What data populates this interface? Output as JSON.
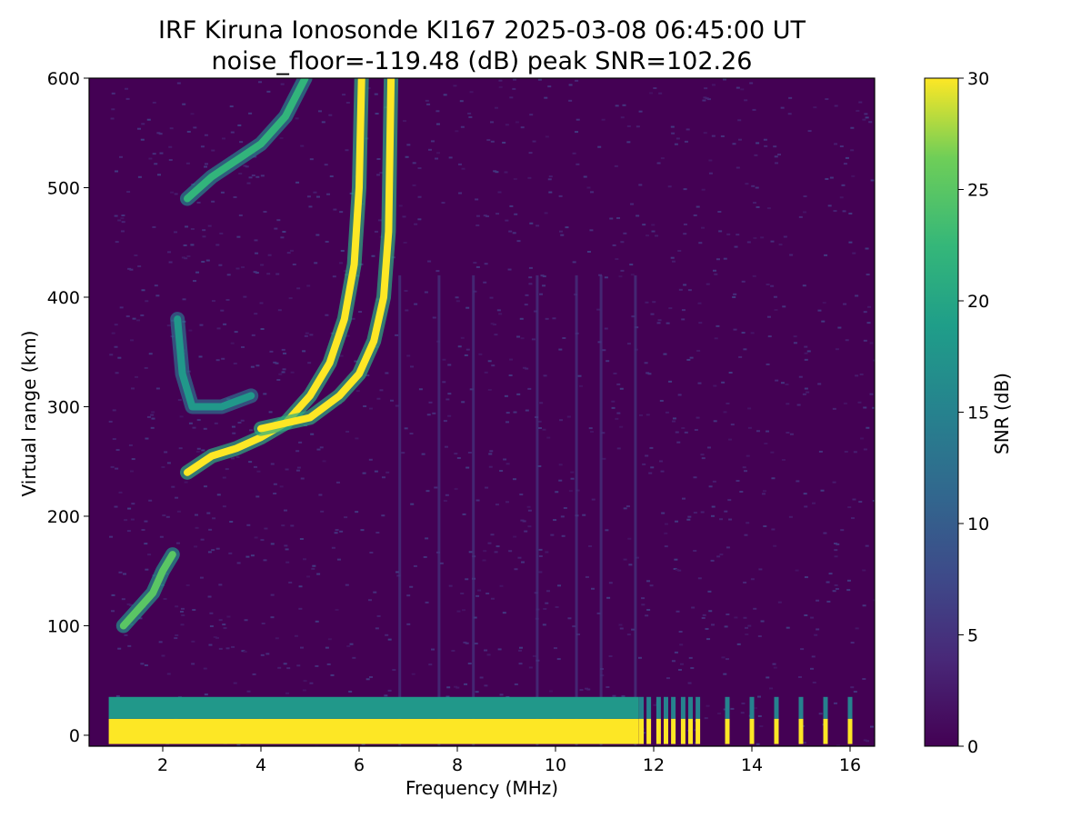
{
  "chart_data": {
    "type": "heatmap",
    "title": "IRF Kiruna Ionosonde KI167 2025-03-08 06:45:00  UT",
    "subtitle": "noise_floor=-119.48 (dB) peak SNR=102.26",
    "xlabel": "Frequency (MHz)",
    "ylabel": "Virtual range (km)",
    "colorbar_label": "SNR (dB)",
    "xlim": [
      0.5,
      16.5
    ],
    "ylim": [
      -10,
      600
    ],
    "clim": [
      0,
      30
    ],
    "colormap": "viridis",
    "data_start_mhz": 0.9,
    "x_ticks": [
      2,
      4,
      6,
      8,
      10,
      12,
      14,
      16
    ],
    "y_ticks": [
      0,
      100,
      200,
      300,
      400,
      500,
      600
    ],
    "colorbar_ticks": [
      0,
      5,
      10,
      15,
      20,
      25,
      30
    ],
    "traces": [
      {
        "name": "ground echo",
        "snr": 30,
        "points": [
          [
            0.9,
            0
          ],
          [
            11.7,
            0
          ]
        ],
        "height_range": [
          -8,
          15
        ]
      },
      {
        "name": "low-range band",
        "snr": 18,
        "points": [
          [
            0.9,
            25
          ],
          [
            11.7,
            25
          ]
        ],
        "height_range": [
          15,
          35
        ]
      },
      {
        "name": "E layer",
        "snr": 25,
        "points": [
          [
            1.2,
            100
          ],
          [
            1.5,
            115
          ],
          [
            1.8,
            130
          ],
          [
            2.0,
            150
          ],
          [
            2.2,
            165
          ]
        ]
      },
      {
        "name": "F2 o-mode",
        "snr": 30,
        "points": [
          [
            2.5,
            240
          ],
          [
            3.0,
            255
          ],
          [
            3.5,
            262
          ],
          [
            4.0,
            272
          ],
          [
            4.5,
            285
          ],
          [
            5.0,
            310
          ],
          [
            5.4,
            340
          ],
          [
            5.7,
            380
          ],
          [
            5.9,
            430
          ],
          [
            6.0,
            500
          ],
          [
            6.05,
            600
          ]
        ]
      },
      {
        "name": "F2 x-mode",
        "snr": 30,
        "points": [
          [
            4.0,
            280
          ],
          [
            5.0,
            290
          ],
          [
            5.6,
            310
          ],
          [
            6.0,
            330
          ],
          [
            6.3,
            360
          ],
          [
            6.5,
            400
          ],
          [
            6.6,
            460
          ],
          [
            6.65,
            600
          ]
        ]
      },
      {
        "name": "F2 multiple echo",
        "snr": 22,
        "points": [
          [
            2.5,
            490
          ],
          [
            3.0,
            510
          ],
          [
            3.5,
            525
          ],
          [
            4.0,
            540
          ],
          [
            4.5,
            565
          ],
          [
            4.9,
            600
          ]
        ]
      },
      {
        "name": "F layer spread",
        "snr": 18,
        "points": [
          [
            2.3,
            380
          ],
          [
            2.4,
            330
          ],
          [
            2.6,
            300
          ],
          [
            3.2,
            300
          ],
          [
            3.8,
            310
          ]
        ]
      }
    ],
    "high_freq_pulses_mhz": [
      11.75,
      11.9,
      12.1,
      12.25,
      12.4,
      12.6,
      12.75,
      12.9,
      13.5,
      14.0,
      14.5,
      15.0,
      15.5,
      16.0
    ],
    "vertical_streaks_mhz": [
      6.8,
      7.6,
      8.3,
      9.6,
      10.4,
      10.9,
      11.6
    ]
  }
}
